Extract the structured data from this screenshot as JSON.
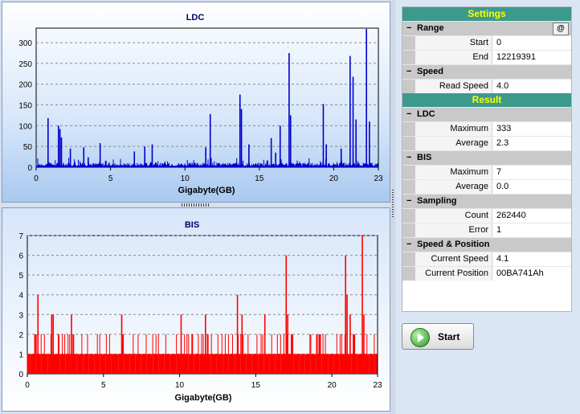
{
  "charts": {
    "ldc": {
      "title": "LDC",
      "xlabel": "Gigabyte(GB)",
      "xticks": [
        "0",
        "5",
        "10",
        "15",
        "20",
        "23"
      ],
      "yticks": [
        "0",
        "50",
        "100",
        "150",
        "200",
        "250",
        "300"
      ],
      "color": "#0000cc"
    },
    "bis": {
      "title": "BIS",
      "xlabel": "Gigabyte(GB)",
      "xticks": [
        "0",
        "5",
        "10",
        "15",
        "20",
        "23"
      ],
      "yticks": [
        "0",
        "1",
        "2",
        "3",
        "4",
        "5",
        "6",
        "7"
      ],
      "color": "#ff0000"
    }
  },
  "chart_data": [
    {
      "type": "bar",
      "title": "LDC",
      "xlabel": "Gigabyte(GB)",
      "ylabel": "",
      "xlim": [
        0,
        23
      ],
      "ylim": [
        0,
        335
      ],
      "grid": true,
      "baseline_typical": 3,
      "peaks": [
        {
          "x": 0.8,
          "y": 118
        },
        {
          "x": 1.5,
          "y": 100
        },
        {
          "x": 1.6,
          "y": 92
        },
        {
          "x": 1.7,
          "y": 72
        },
        {
          "x": 2.3,
          "y": 45
        },
        {
          "x": 3.2,
          "y": 48
        },
        {
          "x": 3.5,
          "y": 24
        },
        {
          "x": 4.3,
          "y": 58
        },
        {
          "x": 6.6,
          "y": 38
        },
        {
          "x": 7.3,
          "y": 50
        },
        {
          "x": 7.8,
          "y": 55
        },
        {
          "x": 11.4,
          "y": 48
        },
        {
          "x": 11.7,
          "y": 128
        },
        {
          "x": 13.7,
          "y": 175
        },
        {
          "x": 13.8,
          "y": 140
        },
        {
          "x": 14.3,
          "y": 55
        },
        {
          "x": 15.8,
          "y": 70
        },
        {
          "x": 16.1,
          "y": 35
        },
        {
          "x": 16.4,
          "y": 100
        },
        {
          "x": 17.0,
          "y": 275
        },
        {
          "x": 17.1,
          "y": 125
        },
        {
          "x": 19.3,
          "y": 152
        },
        {
          "x": 19.5,
          "y": 55
        },
        {
          "x": 20.5,
          "y": 45
        },
        {
          "x": 21.1,
          "y": 268
        },
        {
          "x": 21.3,
          "y": 218
        },
        {
          "x": 21.5,
          "y": 115
        },
        {
          "x": 22.2,
          "y": 333
        },
        {
          "x": 22.4,
          "y": 110
        }
      ]
    },
    {
      "type": "bar",
      "title": "BIS",
      "xlabel": "Gigabyte(GB)",
      "ylabel": "",
      "xlim": [
        0,
        23
      ],
      "ylim": [
        0,
        7
      ],
      "grid": true,
      "baseline_typical": 1,
      "peaks": [
        {
          "x": 0.7,
          "y": 4
        },
        {
          "x": 1.6,
          "y": 3
        },
        {
          "x": 1.7,
          "y": 3
        },
        {
          "x": 2.9,
          "y": 3
        },
        {
          "x": 6.2,
          "y": 3
        },
        {
          "x": 10.1,
          "y": 3
        },
        {
          "x": 11.7,
          "y": 3
        },
        {
          "x": 13.8,
          "y": 4
        },
        {
          "x": 14.1,
          "y": 3
        },
        {
          "x": 15.6,
          "y": 3
        },
        {
          "x": 17.0,
          "y": 6
        },
        {
          "x": 17.1,
          "y": 3
        },
        {
          "x": 20.9,
          "y": 6
        },
        {
          "x": 21.0,
          "y": 4
        },
        {
          "x": 21.2,
          "y": 3
        },
        {
          "x": 22.0,
          "y": 7
        },
        {
          "x": 22.1,
          "y": 3
        }
      ]
    }
  ],
  "settings": {
    "title": "Settings",
    "range": {
      "label": "Range",
      "at_button": "@",
      "start_label": "Start",
      "start_value": "0",
      "end_label": "End",
      "end_value": "12219391"
    },
    "speed": {
      "label": "Speed",
      "read_speed_label": "Read Speed",
      "read_speed_value": "4.0"
    }
  },
  "result": {
    "title": "Result",
    "ldc": {
      "label": "LDC",
      "max_label": "Maximum",
      "max_value": "333",
      "avg_label": "Average",
      "avg_value": "2.3"
    },
    "bis": {
      "label": "BIS",
      "max_label": "Maximum",
      "max_value": "7",
      "avg_label": "Average",
      "avg_value": "0.0"
    },
    "sampling": {
      "label": "Sampling",
      "count_label": "Count",
      "count_value": "262440",
      "error_label": "Error",
      "error_value": "1"
    },
    "speed_position": {
      "label": "Speed & Position",
      "cur_speed_label": "Current Speed",
      "cur_speed_value": "4.1",
      "cur_pos_label": "Current Position",
      "cur_pos_value": "00BA741Ah"
    }
  },
  "toolbar": {
    "start_label": "Start"
  },
  "icons": {
    "collapse": "minus-box-icon",
    "start": "play-circle-icon"
  }
}
